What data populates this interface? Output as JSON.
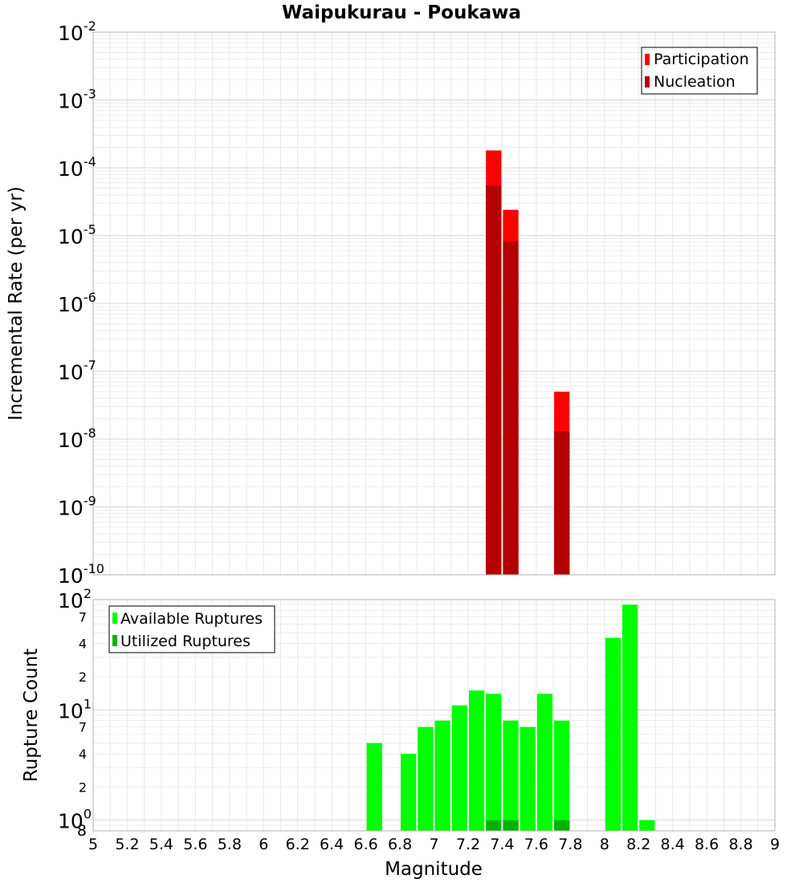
{
  "title": "Waipukurau - Poukawa",
  "x_axis": {
    "label": "Magnitude",
    "range": [
      5,
      9
    ],
    "ticks": [
      "5",
      "5.2",
      "5.4",
      "5.6",
      "5.8",
      "6",
      "6.2",
      "6.4",
      "6.6",
      "6.8",
      "7",
      "7.2",
      "7.4",
      "7.6",
      "7.8",
      "8",
      "8.2",
      "8.4",
      "8.6",
      "8.8",
      "9"
    ]
  },
  "chart_data": [
    {
      "type": "bar",
      "title": "Waipukurau - Poukawa",
      "xlabel": "Magnitude",
      "ylabel": "Incremental Rate (per yr)",
      "yscale": "log",
      "ylim": [
        1e-10,
        0.01
      ],
      "xlim": [
        5,
        9
      ],
      "y_tick_labels": [
        {
          "base": "10",
          "exp": "-2"
        },
        {
          "base": "10",
          "exp": "-3"
        },
        {
          "base": "10",
          "exp": "-4"
        },
        {
          "base": "10",
          "exp": "-5"
        },
        {
          "base": "10",
          "exp": "-6"
        },
        {
          "base": "10",
          "exp": "-7"
        },
        {
          "base": "10",
          "exp": "-8"
        },
        {
          "base": "10",
          "exp": "-9"
        },
        {
          "base": "10",
          "exp": "-10"
        }
      ],
      "legend": {
        "position": "top-right"
      },
      "grid": true,
      "x": [
        7.35,
        7.45,
        7.75
      ],
      "series": [
        {
          "name": "Participation",
          "color": "#ff0000",
          "values": [
            0.00018,
            2.4e-05,
            5e-08
          ]
        },
        {
          "name": "Nucleation",
          "color": "#b30000",
          "values": [
            5.5e-05,
            8.2e-06,
            1.3e-08
          ]
        }
      ]
    },
    {
      "type": "bar",
      "xlabel": "Magnitude",
      "ylabel": "Rupture Count",
      "yscale": "log",
      "ylim": [
        0.8,
        100
      ],
      "xlim": [
        5,
        9
      ],
      "y_tick_labels": [
        {
          "base": "10",
          "exp": "2",
          "kind": "major"
        },
        {
          "text": "7",
          "kind": "minor"
        },
        {
          "text": "4",
          "kind": "minor"
        },
        {
          "text": "2",
          "kind": "minor"
        },
        {
          "base": "10",
          "exp": "1",
          "kind": "major"
        },
        {
          "text": "7",
          "kind": "minor"
        },
        {
          "text": "4",
          "kind": "minor"
        },
        {
          "text": "2",
          "kind": "minor"
        },
        {
          "base": "10",
          "exp": "0",
          "kind": "major"
        },
        {
          "text": "8",
          "kind": "minor"
        }
      ],
      "legend": {
        "position": "top-left"
      },
      "grid": true,
      "x": [
        6.65,
        6.85,
        6.95,
        7.05,
        7.15,
        7.25,
        7.35,
        7.45,
        7.55,
        7.65,
        7.75,
        8.05,
        8.15,
        8.25
      ],
      "series": [
        {
          "name": "Available Ruptures",
          "color": "#00ff00",
          "values": [
            5,
            4,
            7,
            8,
            11,
            15,
            14,
            8,
            7,
            14,
            8,
            45,
            90,
            1
          ]
        },
        {
          "name": "Utilized Ruptures",
          "color": "#00b300",
          "values": [
            null,
            null,
            null,
            null,
            null,
            null,
            1,
            1,
            null,
            null,
            1,
            null,
            null,
            null
          ]
        }
      ]
    }
  ]
}
